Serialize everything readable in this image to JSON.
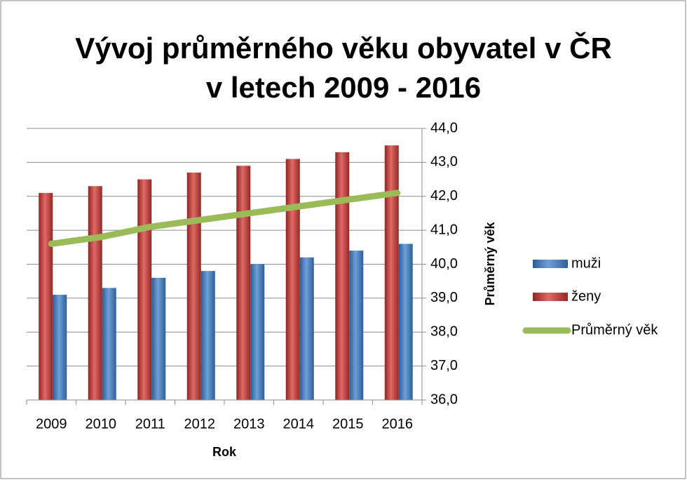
{
  "chart_data": {
    "type": "bar",
    "title": "Vývoj průměrného věku obyvatel v ČR",
    "subtitle": "v letech 2009 - 2016",
    "x_label": "Rok",
    "y_label": "Průměrný věk",
    "categories": [
      "2009",
      "2010",
      "2011",
      "2012",
      "2013",
      "2014",
      "2015",
      "2016"
    ],
    "series": [
      {
        "name": "muži",
        "color": "#4f81bd",
        "values": [
          39.1,
          39.3,
          39.6,
          39.8,
          40.0,
          40.2,
          40.4,
          40.6
        ]
      },
      {
        "name": "ženy",
        "color": "#c0504d",
        "values": [
          42.1,
          42.3,
          42.5,
          42.7,
          42.9,
          43.1,
          43.3,
          43.5
        ]
      },
      {
        "name": "Průměrný věk",
        "color": "#9bbb59",
        "type": "line",
        "values": [
          40.6,
          40.8,
          41.1,
          41.3,
          41.5,
          41.7,
          41.9,
          42.1
        ]
      }
    ],
    "ylim": [
      36,
      44
    ],
    "yticks": [
      {
        "value": 36,
        "label": "36,0"
      },
      {
        "value": 37,
        "label": "37,0"
      },
      {
        "value": 38,
        "label": "38,0"
      },
      {
        "value": 39,
        "label": "39,0"
      },
      {
        "value": 40,
        "label": "40,0"
      },
      {
        "value": 41,
        "label": "41,0"
      },
      {
        "value": 42,
        "label": "42,0"
      },
      {
        "value": 43,
        "label": "43,0"
      },
      {
        "value": 44,
        "label": "44,0"
      }
    ],
    "grid": true,
    "legend": "right"
  }
}
